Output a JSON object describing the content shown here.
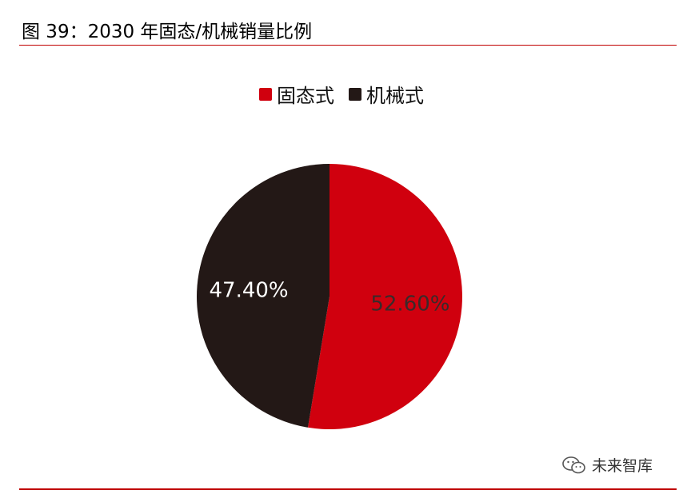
{
  "header": {
    "title": "图 39：2030 年固态/机械销量比例"
  },
  "watermark": {
    "text": "未来智库",
    "icon": "wechat-icon"
  },
  "colors": {
    "accent_rule": "#c00000",
    "solid_state": "#d0000e",
    "mechanical": "#231816"
  },
  "chart_data": {
    "type": "pie",
    "title": "",
    "legend_position": "top-center",
    "slices": [
      {
        "name": "固态式",
        "value": 52.6,
        "label": "52.60%",
        "color": "#d0000e",
        "label_color": "#3a2a2a"
      },
      {
        "name": "机械式",
        "value": 47.4,
        "label": "47.40%",
        "color": "#231816",
        "label_color": "#ffffff"
      }
    ]
  }
}
